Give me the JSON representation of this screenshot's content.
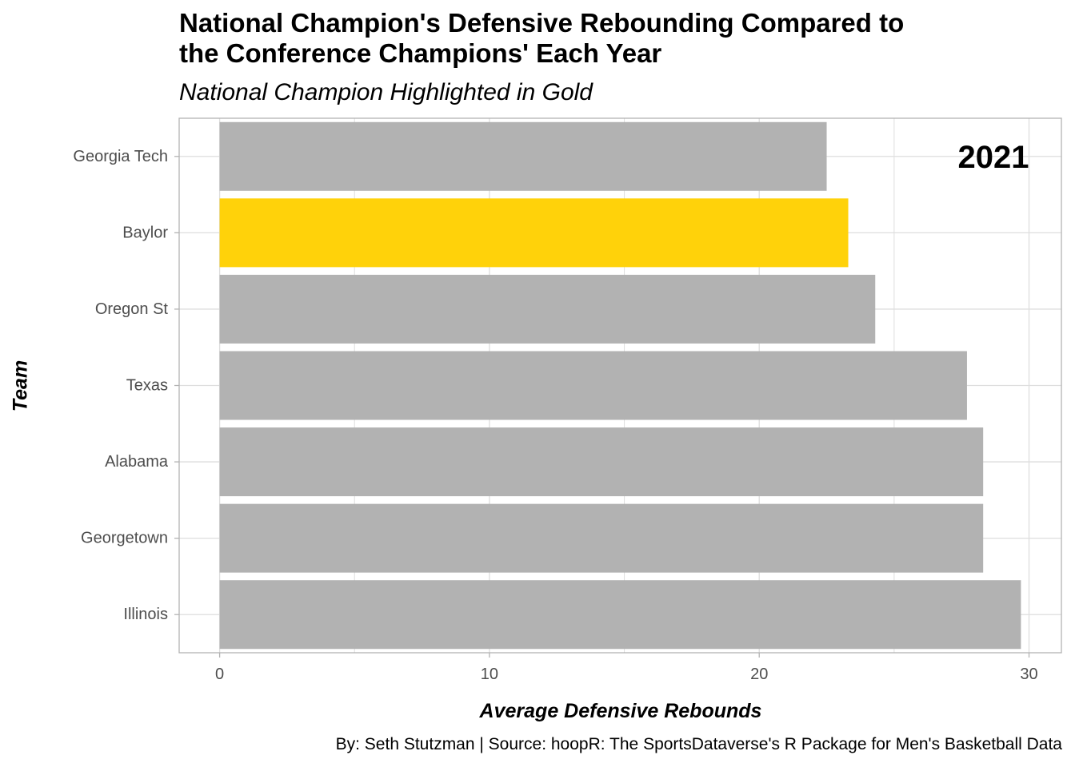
{
  "chart_data": {
    "type": "bar",
    "orientation": "horizontal",
    "title": "National Champion's Defensive Rebounding Compared to the Conference Champions' Each Year",
    "title_lines": [
      "National Champion's Defensive Rebounding Compared to",
      "the Conference Champions' Each Year"
    ],
    "subtitle": "National Champion Highlighted in Gold",
    "xlabel": "Average Defensive Rebounds",
    "ylabel": "Team",
    "annotation": "2021",
    "caption": "By: Seth Stutzman | Source: hoopR: The SportsDataverse's R Package for Men's Basketball Data",
    "categories": [
      "Georgia Tech",
      "Baylor",
      "Oregon St",
      "Texas",
      "Alabama",
      "Georgetown",
      "Illinois"
    ],
    "values": [
      22.5,
      23.3,
      24.3,
      27.7,
      28.3,
      28.3,
      29.7
    ],
    "highlight": "Baylor",
    "xlim": [
      -1.5,
      31.2
    ],
    "xticks": [
      0,
      10,
      20,
      30
    ],
    "grid": true,
    "colors": {
      "bar": "#b2b2b2",
      "highlight": "#ffd20a",
      "grid": "#dedede",
      "border": "#b3b3b3"
    }
  }
}
